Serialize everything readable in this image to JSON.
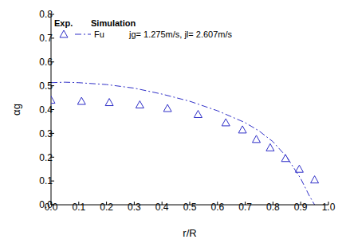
{
  "chart_data": {
    "type": "line",
    "x_label": "r/R",
    "y_label": "αg",
    "xlim": [
      0,
      1
    ],
    "xticks": [
      {
        "value": 0,
        "label": "0.0"
      },
      {
        "value": 0.1,
        "label": "0.1"
      },
      {
        "value": 0.2,
        "label": "0.2"
      },
      {
        "value": 0.3,
        "label": "0.3"
      },
      {
        "value": 0.4,
        "label": "0.4"
      },
      {
        "value": 0.5,
        "label": "0.5"
      },
      {
        "value": 0.6,
        "label": "0.6"
      },
      {
        "value": 0.7,
        "label": "0.7"
      },
      {
        "value": 0.8,
        "label": "0.8"
      },
      {
        "value": 0.9,
        "label": "0.9"
      },
      {
        "value": 1,
        "label": "1.0"
      }
    ],
    "ylim": [
      0,
      0.8
    ],
    "yticks": [
      {
        "value": 0,
        "label": "0.0"
      },
      {
        "value": 0.1,
        "label": "0.1"
      },
      {
        "value": 0.2,
        "label": "0.2"
      },
      {
        "value": 0.3,
        "label": "0.3"
      },
      {
        "value": 0.4,
        "label": "0.4"
      },
      {
        "value": 0.5,
        "label": "0.5"
      },
      {
        "value": 0.6,
        "label": "0.6"
      },
      {
        "value": 0.7,
        "label": "0.7"
      },
      {
        "value": 0.8,
        "label": "0.8"
      }
    ],
    "legend": "top-left",
    "annotations": [
      "Simulation",
      "jg= 1.275m/s, jl= 2.607m/s"
    ],
    "series": [
      {
        "name": "Exp.",
        "type": "scatter",
        "marker": "triangle",
        "color": "#3030c8",
        "x": [
          0.0,
          0.11,
          0.21,
          0.32,
          0.42,
          0.53,
          0.63,
          0.69,
          0.74,
          0.79,
          0.845,
          0.895,
          0.95
        ],
        "values": [
          0.44,
          0.435,
          0.43,
          0.42,
          0.405,
          0.38,
          0.345,
          0.315,
          0.275,
          0.24,
          0.195,
          0.15,
          0.105
        ]
      },
      {
        "name": "Fu",
        "type": "line",
        "line_style": "dashdot",
        "color": "#3030c8",
        "x": [
          0.0,
          0.05,
          0.1,
          0.2,
          0.3,
          0.4,
          0.5,
          0.6,
          0.7,
          0.75,
          0.8,
          0.85,
          0.9,
          0.93,
          0.95
        ],
        "values": [
          0.513,
          0.515,
          0.513,
          0.505,
          0.49,
          0.465,
          0.435,
          0.395,
          0.345,
          0.31,
          0.265,
          0.2,
          0.11,
          0.04,
          0.0
        ]
      }
    ]
  }
}
